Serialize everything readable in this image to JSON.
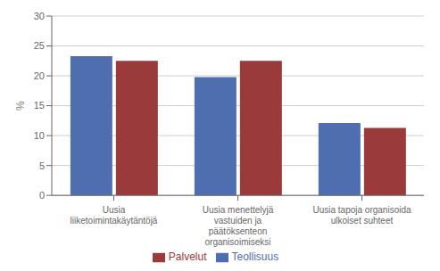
{
  "chart_data": {
    "type": "bar",
    "categories": [
      "Uusia\nliiketoimintakäytäntöjä",
      "Uusia menettelyjä\nvastuiden ja\npäätöksenteon\norganisoimiseksi",
      "Uusia tapoja organisoida\nulkoiset suhteet"
    ],
    "series": [
      {
        "name": "Teollisuus",
        "color": "#4F6EAF",
        "values": [
          23.3,
          19.8,
          12.1
        ]
      },
      {
        "name": "Palvelut",
        "color": "#9B3A3A",
        "values": [
          22.5,
          22.5,
          11.3
        ]
      }
    ],
    "ylabel": "%",
    "ylim": [
      0,
      30
    ],
    "yticks": [
      0,
      5,
      10,
      15,
      20,
      25,
      30
    ],
    "grid": true,
    "legend": "bottom"
  }
}
